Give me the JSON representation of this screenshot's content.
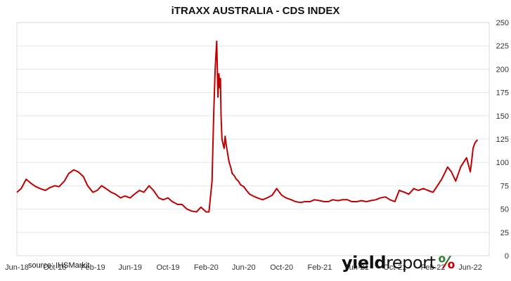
{
  "chart_data": {
    "type": "line",
    "title": "iTRAXX AUSTRALIA - CDS INDEX",
    "xlabel": "",
    "ylabel": "",
    "x_tick_labels": [
      "Jun-18",
      "Oct-18",
      "Feb-19",
      "Jun-19",
      "Oct-19",
      "Feb-20",
      "Jun-20",
      "Oct-20",
      "Feb-21",
      "Jun-21",
      "Oct-21",
      "Feb-22",
      "Jun-22"
    ],
    "y_ticks": [
      0,
      25,
      50,
      75,
      100,
      125,
      150,
      175,
      200,
      225,
      250
    ],
    "ylim": [
      0,
      250
    ],
    "y_axis_side": "right",
    "grid": "horizontal",
    "series": [
      {
        "color": "#c00000",
        "x": [
          "2018-06-01",
          "2018-06-15",
          "2018-07-01",
          "2018-07-15",
          "2018-08-01",
          "2018-08-15",
          "2018-09-01",
          "2018-09-15",
          "2018-10-01",
          "2018-10-15",
          "2018-11-01",
          "2018-11-15",
          "2018-12-01",
          "2018-12-15",
          "2019-01-01",
          "2019-01-15",
          "2019-02-01",
          "2019-02-15",
          "2019-03-01",
          "2019-03-15",
          "2019-04-01",
          "2019-04-15",
          "2019-05-01",
          "2019-05-15",
          "2019-06-01",
          "2019-06-15",
          "2019-07-01",
          "2019-07-15",
          "2019-08-01",
          "2019-08-15",
          "2019-09-01",
          "2019-09-15",
          "2019-10-01",
          "2019-10-15",
          "2019-11-01",
          "2019-11-15",
          "2019-12-01",
          "2019-12-15",
          "2020-01-01",
          "2020-01-15",
          "2020-02-01",
          "2020-02-10",
          "2020-02-20",
          "2020-02-25",
          "2020-03-01",
          "2020-03-06",
          "2020-03-10",
          "2020-03-13",
          "2020-03-16",
          "2020-03-18",
          "2020-03-20",
          "2020-03-23",
          "2020-03-26",
          "2020-03-30",
          "2020-04-02",
          "2020-04-06",
          "2020-04-10",
          "2020-04-15",
          "2020-04-20",
          "2020-04-25",
          "2020-05-01",
          "2020-05-08",
          "2020-05-15",
          "2020-05-22",
          "2020-06-01",
          "2020-06-10",
          "2020-06-20",
          "2020-07-01",
          "2020-07-15",
          "2020-08-01",
          "2020-08-15",
          "2020-09-01",
          "2020-09-15",
          "2020-10-01",
          "2020-10-15",
          "2020-11-01",
          "2020-11-15",
          "2020-12-01",
          "2020-12-15",
          "2021-01-01",
          "2021-01-15",
          "2021-02-01",
          "2021-02-15",
          "2021-03-01",
          "2021-03-15",
          "2021-04-01",
          "2021-04-15",
          "2021-05-01",
          "2021-05-15",
          "2021-06-01",
          "2021-06-15",
          "2021-07-01",
          "2021-07-15",
          "2021-08-01",
          "2021-08-15",
          "2021-09-01",
          "2021-09-15",
          "2021-10-01",
          "2021-10-15",
          "2021-11-01",
          "2021-11-15",
          "2021-12-01",
          "2021-12-15",
          "2022-01-01",
          "2022-01-15",
          "2022-02-01",
          "2022-02-15",
          "2022-03-01",
          "2022-03-10",
          "2022-03-20",
          "2022-04-01",
          "2022-04-15",
          "2022-05-01",
          "2022-05-10",
          "2022-05-20",
          "2022-06-01",
          "2022-06-05",
          "2022-06-10",
          "2022-06-15",
          "2022-06-20",
          "2022-06-25"
        ],
        "y": [
          68,
          72,
          82,
          78,
          74,
          72,
          70,
          73,
          75,
          74,
          80,
          88,
          92,
          90,
          85,
          75,
          68,
          70,
          75,
          72,
          68,
          66,
          62,
          64,
          62,
          66,
          70,
          68,
          75,
          70,
          62,
          60,
          62,
          58,
          55,
          55,
          50,
          48,
          47,
          52,
          47,
          47,
          80,
          148,
          200,
          230,
          170,
          195,
          180,
          190,
          150,
          125,
          120,
          115,
          128,
          118,
          110,
          100,
          95,
          88,
          86,
          82,
          80,
          76,
          74,
          70,
          66,
          64,
          62,
          60,
          62,
          65,
          72,
          65,
          62,
          60,
          58,
          57,
          58,
          58,
          60,
          59,
          58,
          58,
          60,
          59,
          60,
          60,
          58,
          58,
          59,
          58,
          59,
          60,
          62,
          63,
          60,
          58,
          70,
          68,
          66,
          72,
          70,
          72,
          70,
          68,
          75,
          82,
          88,
          95,
          90,
          80,
          95,
          100,
          105,
          90,
          100,
          115,
          120,
          123,
          124
        ]
      }
    ],
    "annotations": [
      "source: IHSMarkit"
    ],
    "logo": {
      "text_bold": "yield",
      "text_regular": "report",
      "symbol": "%",
      "symbol_colors": [
        "#2e7d32",
        "#c00000"
      ]
    }
  }
}
